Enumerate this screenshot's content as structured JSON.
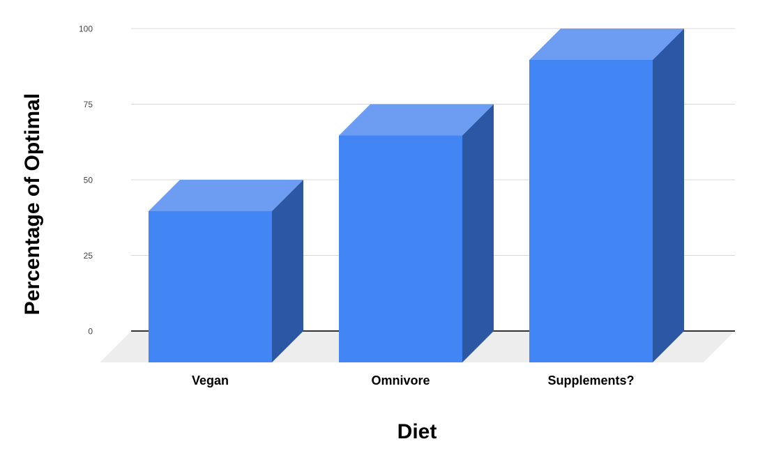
{
  "page": {
    "background": "#ffffff"
  },
  "chart_data": {
    "type": "bar",
    "variant": "3d-column",
    "title": "",
    "xlabel": "Diet",
    "ylabel": "Percentage of Optimal",
    "categories": [
      "Vegan",
      "Omnivore",
      "Supplements?"
    ],
    "values": [
      50,
      75,
      100
    ],
    "series": [
      {
        "name": "Percentage of Optimal",
        "values": [
          50,
          75,
          100
        ]
      }
    ],
    "ylim": [
      0,
      100
    ],
    "yticks": [
      0,
      25,
      50,
      75,
      100
    ],
    "grid": true,
    "legend": "none",
    "colors": {
      "bar_front": "#4285f4",
      "bar_top": "#6c9df2",
      "bar_side": "#2c57a4",
      "gridline": "#d9d9d9",
      "zero_line": "#333333",
      "floor": "#ededed",
      "tick_label": "#444444",
      "axis_title": "#000000",
      "category_label": "#000000",
      "background": "#ffffff"
    }
  }
}
